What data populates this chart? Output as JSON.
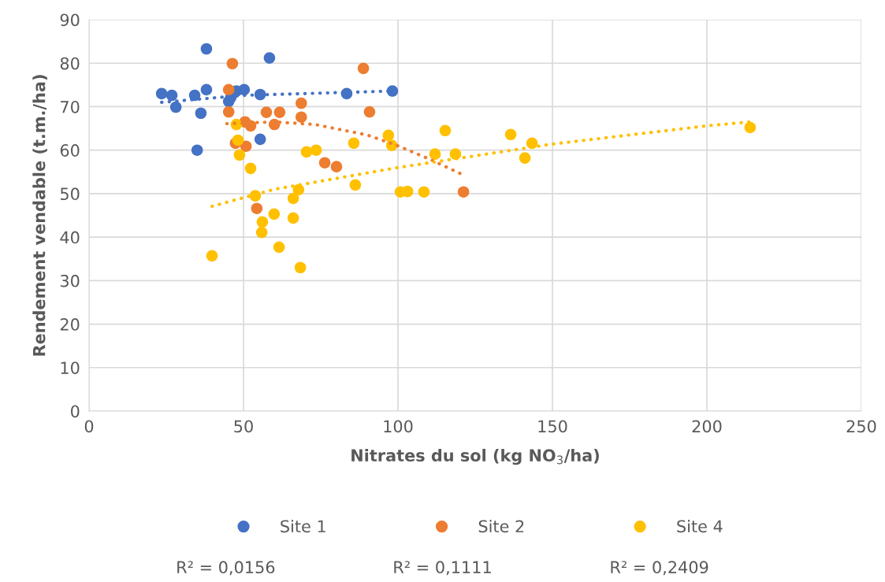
{
  "chart_data": {
    "type": "scatter",
    "xlabel": "Nitrates du sol (kg NO$_{3}$/ha)",
    "ylabel": "Rendement vendable (t.m./ha)",
    "xlim": [
      0,
      250
    ],
    "xticks": [
      0,
      50,
      100,
      150,
      200,
      250
    ],
    "ylim": [
      0,
      90
    ],
    "yticks": [
      0,
      10,
      20,
      30,
      40,
      50,
      60,
      70,
      80,
      90
    ],
    "grid": true,
    "legend": "bottom",
    "marker": "circle",
    "series": [
      {
        "name": "Site 1",
        "color": "#4472c4",
        "x": [
          23.5,
          26.8,
          28.1,
          34.2,
          35.0,
          36.2,
          38.0,
          38.0,
          45.2,
          45.9,
          47.7,
          50.2,
          55.4,
          55.4,
          58.4,
          83.4,
          98.2
        ],
        "values": [
          73.0,
          72.6,
          69.9,
          72.6,
          60.0,
          68.5,
          83.3,
          73.9,
          71.2,
          72.1,
          73.6,
          73.9,
          72.8,
          62.5,
          81.2,
          73.0,
          73.6
        ]
      },
      {
        "name": "Site 2",
        "color": "#ed7d31",
        "x": [
          46.4,
          45.2,
          45.2,
          47.4,
          50.5,
          50.8,
          52.3,
          54.3,
          57.4,
          60.0,
          61.7,
          68.7,
          68.7,
          76.3,
          80.1,
          88.8,
          90.8,
          121.2
        ],
        "values": [
          79.9,
          73.9,
          68.8,
          61.6,
          66.5,
          60.9,
          65.6,
          46.6,
          68.7,
          65.9,
          68.7,
          70.8,
          67.6,
          57.1,
          56.2,
          78.8,
          68.8,
          50.4
        ]
      },
      {
        "name": "Site 4",
        "color": "#ffc000",
        "x": [
          39.8,
          47.7,
          48.2,
          48.7,
          52.3,
          53.8,
          56.1,
          55.9,
          59.9,
          61.5,
          66.1,
          66.1,
          67.8,
          68.4,
          70.4,
          73.5,
          85.7,
          86.2,
          96.9,
          98.0,
          100.8,
          103.1,
          108.4,
          112.0,
          115.3,
          118.6,
          136.5,
          141.1,
          143.4,
          214.0
        ],
        "values": [
          35.7,
          65.9,
          62.3,
          58.9,
          55.8,
          49.5,
          43.5,
          41.1,
          45.3,
          37.7,
          48.9,
          44.4,
          50.9,
          33.0,
          59.6,
          60.0,
          61.6,
          52.0,
          63.4,
          61.1,
          50.4,
          50.5,
          50.4,
          59.1,
          64.5,
          59.1,
          63.6,
          58.2,
          61.6,
          65.2
        ]
      },
      {
        "type": "line",
        "line_style": "dotted",
        "marker": "none",
        "color": "#4472c4",
        "x": [
          23.5,
          50,
          98.2
        ],
        "values": [
          71.0,
          72.6,
          73.6
        ]
      },
      {
        "type": "line",
        "line_style": "dotted",
        "marker": "none",
        "color": "#ed7d31",
        "x": [
          44.6,
          60,
          73.2,
          90,
          100,
          110,
          121.2
        ],
        "values": [
          66.1,
          66.5,
          65.9,
          63.5,
          61.0,
          58.0,
          54.3
        ]
      },
      {
        "type": "line",
        "line_style": "dotted",
        "marker": "none",
        "color": "#ffc000",
        "x": [
          39.8,
          60,
          100,
          150,
          200,
          214.0
        ],
        "values": [
          47.1,
          51.0,
          56.0,
          61.4,
          65.6,
          66.5
        ]
      }
    ],
    "annotations": [
      "R² = 0,0156",
      "R² = 0,1111",
      "R² = 0,2409"
    ]
  }
}
